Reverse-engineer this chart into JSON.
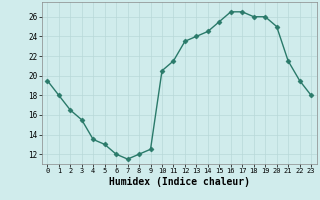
{
  "x": [
    0,
    1,
    2,
    3,
    4,
    5,
    6,
    7,
    8,
    9,
    10,
    11,
    12,
    13,
    14,
    15,
    16,
    17,
    18,
    19,
    20,
    21,
    22,
    23
  ],
  "y": [
    19.5,
    18.0,
    16.5,
    15.5,
    13.5,
    13.0,
    12.0,
    11.5,
    12.0,
    12.5,
    20.5,
    21.5,
    23.5,
    24.0,
    24.5,
    25.5,
    26.5,
    26.5,
    26.0,
    26.0,
    25.0,
    21.5,
    19.5,
    18.0
  ],
  "line_color": "#2a7a6a",
  "marker": "D",
  "markersize": 2.5,
  "linewidth": 1.0,
  "bg_color": "#d0ecec",
  "grid_color": "#b8d8d8",
  "xlabel": "Humidex (Indice chaleur)",
  "xlabel_fontsize": 7,
  "tick_fontsize": 5.5,
  "ylim": [
    11,
    27.5
  ],
  "yticks": [
    12,
    14,
    16,
    18,
    20,
    22,
    24,
    26
  ],
  "xlim": [
    -0.5,
    23.5
  ],
  "xticks": [
    0,
    1,
    2,
    3,
    4,
    5,
    6,
    7,
    8,
    9,
    10,
    11,
    12,
    13,
    14,
    15,
    16,
    17,
    18,
    19,
    20,
    21,
    22,
    23
  ]
}
